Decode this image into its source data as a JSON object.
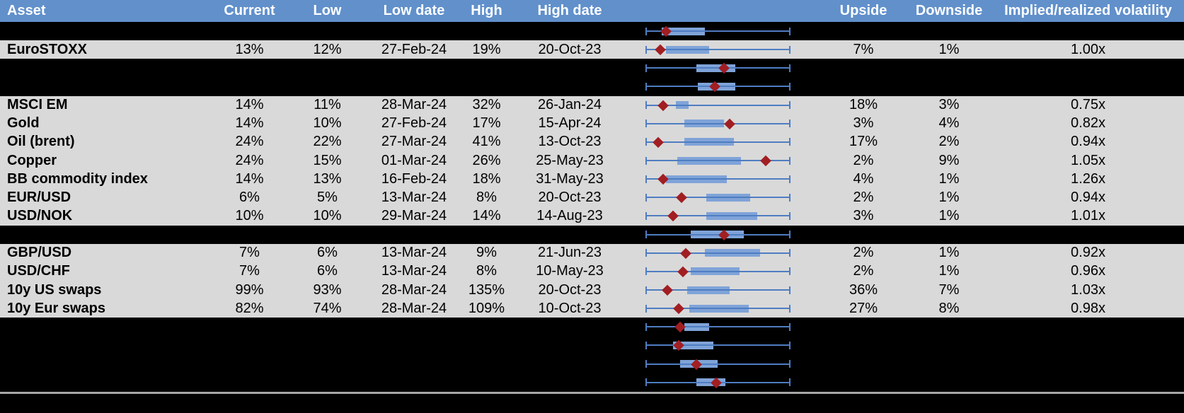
{
  "colors": {
    "header_bg": "#6190cb",
    "header_text": "#ffffff",
    "row_bg": "#d9d9d9",
    "hidden_row_bg": "#000000",
    "whisker_blue": "#4f7dc2",
    "box_blue": "#7fa3d8",
    "marker_red": "#a11e22",
    "divider_gray": "#a6a6a6"
  },
  "chart_data": {
    "type": "table",
    "columns": [
      "Asset",
      "Current",
      "Low",
      "Low date",
      "High",
      "High date",
      "",
      "Upside",
      "Downside",
      "Implied/realized volatility"
    ],
    "range_plot": {
      "description": "Each row has a horizontal range plot: whisker spans full low-high range (0-100%), blue box = inner range, red diamond = current level",
      "axis_min_pct": 0,
      "axis_max_pct": 100
    },
    "rows": [
      {
        "hidden": true,
        "box": {
          "box_start_pct": 11,
          "box_end_pct": 41,
          "marker_pct": 14
        }
      },
      {
        "hidden": false,
        "asset": "EuroSTOXX",
        "current": "13%",
        "low": "12%",
        "low_date": "27-Feb-24",
        "high": "19%",
        "high_date": "20-Oct-23",
        "upside": "7%",
        "downside": "1%",
        "implied_realized": "1.00x",
        "box": {
          "box_start_pct": 14,
          "box_end_pct": 44,
          "marker_pct": 10
        }
      },
      {
        "hidden": true,
        "box": {
          "box_start_pct": 35,
          "box_end_pct": 62,
          "marker_pct": 54
        }
      },
      {
        "hidden": true,
        "box": {
          "box_start_pct": 36,
          "box_end_pct": 62,
          "marker_pct": 48
        }
      },
      {
        "hidden": false,
        "asset": "MSCI EM",
        "current": "14%",
        "low": "11%",
        "low_date": "28-Mar-24",
        "high": "32%",
        "high_date": "26-Jan-24",
        "upside": "18%",
        "downside": "3%",
        "implied_realized": "0.75x",
        "box": {
          "box_start_pct": 21,
          "box_end_pct": 30,
          "marker_pct": 12
        }
      },
      {
        "hidden": false,
        "asset": "Gold",
        "current": "14%",
        "low": "10%",
        "low_date": "27-Feb-24",
        "high": "17%",
        "high_date": "15-Apr-24",
        "upside": "3%",
        "downside": "4%",
        "implied_realized": "0.82x",
        "box": {
          "box_start_pct": 27,
          "box_end_pct": 54,
          "marker_pct": 58
        }
      },
      {
        "hidden": false,
        "asset": "Oil (brent)",
        "current": "24%",
        "low": "22%",
        "low_date": "27-Mar-24",
        "high": "41%",
        "high_date": "13-Oct-23",
        "upside": "17%",
        "downside": "2%",
        "implied_realized": "0.94x",
        "box": {
          "box_start_pct": 27,
          "box_end_pct": 61,
          "marker_pct": 9
        }
      },
      {
        "hidden": false,
        "asset": "Copper",
        "current": "24%",
        "low": "15%",
        "low_date": "01-Mar-24",
        "high": "26%",
        "high_date": "25-May-23",
        "upside": "2%",
        "downside": "9%",
        "implied_realized": "1.05x",
        "box": {
          "box_start_pct": 22,
          "box_end_pct": 66,
          "marker_pct": 83
        }
      },
      {
        "hidden": false,
        "asset": "BB commodity index",
        "current": "14%",
        "low": "13%",
        "low_date": "16-Feb-24",
        "high": "18%",
        "high_date": "31-May-23",
        "upside": "4%",
        "downside": "1%",
        "implied_realized": "1.26x",
        "box": {
          "box_start_pct": 14,
          "box_end_pct": 56,
          "marker_pct": 12
        }
      },
      {
        "hidden": false,
        "asset": "EUR/USD",
        "current": "6%",
        "low": "5%",
        "low_date": "13-Mar-24",
        "high": "8%",
        "high_date": "20-Oct-23",
        "upside": "2%",
        "downside": "1%",
        "implied_realized": "0.94x",
        "box": {
          "box_start_pct": 42,
          "box_end_pct": 72,
          "marker_pct": 25
        }
      },
      {
        "hidden": false,
        "asset": "USD/NOK",
        "current": "10%",
        "low": "10%",
        "low_date": "29-Mar-24",
        "high": "14%",
        "high_date": "14-Aug-23",
        "upside": "3%",
        "downside": "1%",
        "implied_realized": "1.01x",
        "box": {
          "box_start_pct": 42,
          "box_end_pct": 77,
          "marker_pct": 19
        }
      },
      {
        "hidden": true,
        "box": {
          "box_start_pct": 31,
          "box_end_pct": 68,
          "marker_pct": 54
        }
      },
      {
        "hidden": false,
        "asset": "GBP/USD",
        "current": "7%",
        "low": "6%",
        "low_date": "13-Mar-24",
        "high": "9%",
        "high_date": "21-Jun-23",
        "upside": "2%",
        "downside": "1%",
        "implied_realized": "0.92x",
        "box": {
          "box_start_pct": 41,
          "box_end_pct": 79,
          "marker_pct": 28
        }
      },
      {
        "hidden": false,
        "asset": "USD/CHF",
        "current": "7%",
        "low": "6%",
        "low_date": "13-Mar-24",
        "high": "8%",
        "high_date": "10-May-23",
        "upside": "2%",
        "downside": "1%",
        "implied_realized": "0.96x",
        "box": {
          "box_start_pct": 31,
          "box_end_pct": 65,
          "marker_pct": 26
        }
      },
      {
        "hidden": false,
        "asset": "10y US swaps",
        "current": "99%",
        "low": "93%",
        "low_date": "28-Mar-24",
        "high": "135%",
        "high_date": "20-Oct-23",
        "upside": "36%",
        "downside": "7%",
        "implied_realized": "1.03x",
        "box": {
          "box_start_pct": 29,
          "box_end_pct": 58,
          "marker_pct": 15
        }
      },
      {
        "hidden": false,
        "asset": "10y Eur swaps",
        "current": "82%",
        "low": "74%",
        "low_date": "28-Mar-24",
        "high": "109%",
        "high_date": "10-Oct-23",
        "upside": "27%",
        "downside": "8%",
        "implied_realized": "0.98x",
        "box": {
          "box_start_pct": 30,
          "box_end_pct": 71,
          "marker_pct": 23
        }
      },
      {
        "hidden": true,
        "box": {
          "box_start_pct": 27,
          "box_end_pct": 44,
          "marker_pct": 24
        }
      },
      {
        "hidden": true,
        "box": {
          "box_start_pct": 19,
          "box_end_pct": 47,
          "marker_pct": 23
        }
      },
      {
        "hidden": true,
        "box": {
          "box_start_pct": 24,
          "box_end_pct": 50,
          "marker_pct": 35
        }
      },
      {
        "hidden": true,
        "box": {
          "box_start_pct": 35,
          "box_end_pct": 55,
          "marker_pct": 49
        }
      }
    ]
  }
}
